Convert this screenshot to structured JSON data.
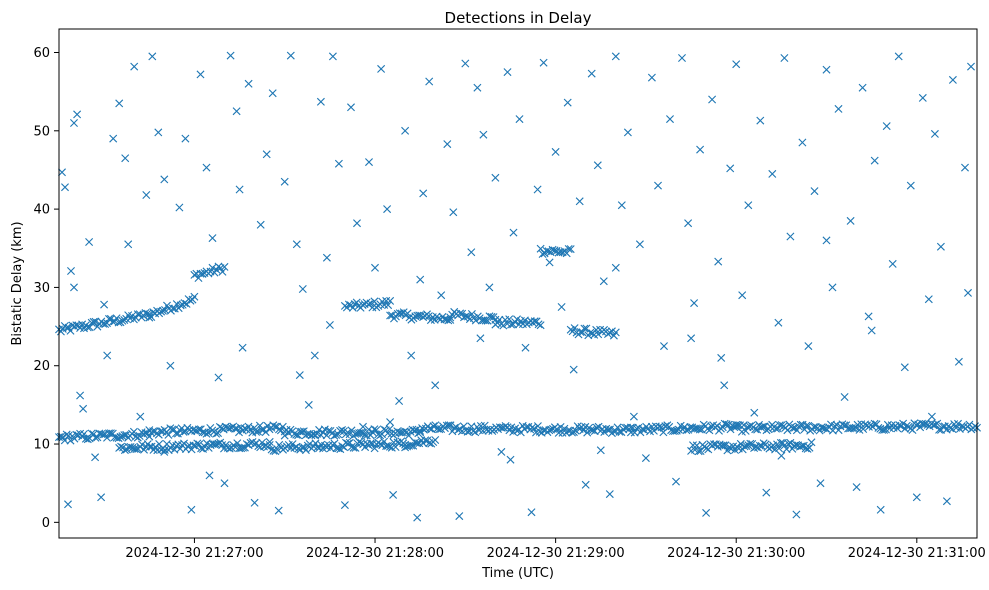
{
  "chart_data": {
    "type": "scatter",
    "title": "Detections in Delay",
    "xlabel": "Time (UTC)",
    "ylabel": "Bistatic Delay (km)",
    "marker": "x",
    "color": "#1f77b4",
    "grid": false,
    "x_range": [
      "2024-12-30 21:26:15",
      "2024-12-30 21:31:20"
    ],
    "ylim": [
      -2,
      63
    ],
    "x_ticks": [
      "2024-12-30 21:27:00",
      "2024-12-30 21:28:00",
      "2024-12-30 21:29:00",
      "2024-12-30 21:30:00",
      "2024-12-30 21:31:00"
    ],
    "y_ticks": [
      0,
      10,
      20,
      30,
      40,
      50,
      60
    ],
    "tracks": [
      {
        "from": "2024-12-30 21:26:15",
        "to": "2024-12-30 21:26:45",
        "y_start": 24.5,
        "y_end": 26.5
      },
      {
        "from": "2024-12-30 21:26:45",
        "to": "2024-12-30 21:27:00",
        "y_start": 26.5,
        "y_end": 28.5
      },
      {
        "from": "2024-12-30 21:27:00",
        "to": "2024-12-30 21:27:10",
        "y_start": 31.5,
        "y_end": 32.5
      },
      {
        "from": "2024-12-30 21:27:50",
        "to": "2024-12-30 21:28:05",
        "y_start": 27.5,
        "y_end": 28.0
      },
      {
        "from": "2024-12-30 21:28:05",
        "to": "2024-12-30 21:28:25",
        "y_start": 26.5,
        "y_end": 26.0
      },
      {
        "from": "2024-12-30 21:28:25",
        "to": "2024-12-30 21:28:40",
        "y_start": 26.5,
        "y_end": 26.0
      },
      {
        "from": "2024-12-30 21:28:40",
        "to": "2024-12-30 21:28:55",
        "y_start": 25.5,
        "y_end": 25.5
      },
      {
        "from": "2024-12-30 21:28:55",
        "to": "2024-12-30 21:29:05",
        "y_start": 34.7,
        "y_end": 34.5
      },
      {
        "from": "2024-12-30 21:29:05",
        "to": "2024-12-30 21:29:20",
        "y_start": 24.5,
        "y_end": 24.0
      },
      {
        "from": "2024-12-30 21:26:15",
        "to": "2024-12-30 21:26:45",
        "y_start": 10.8,
        "y_end": 11.3
      },
      {
        "from": "2024-12-30 21:26:45",
        "to": "2024-12-30 21:27:30",
        "y_start": 11.5,
        "y_end": 12.0
      },
      {
        "from": "2024-12-30 21:27:30",
        "to": "2024-12-30 21:28:15",
        "y_start": 11.5,
        "y_end": 11.5
      },
      {
        "from": "2024-12-30 21:28:15",
        "to": "2024-12-30 21:29:25",
        "y_start": 12.0,
        "y_end": 11.8
      },
      {
        "from": "2024-12-30 21:29:25",
        "to": "2024-12-30 21:30:00",
        "y_start": 11.8,
        "y_end": 12.2
      },
      {
        "from": "2024-12-30 21:30:00",
        "to": "2024-12-30 21:31:20",
        "y_start": 12.0,
        "y_end": 12.3
      },
      {
        "from": "2024-12-30 21:26:35",
        "to": "2024-12-30 21:27:25",
        "y_start": 9.5,
        "y_end": 10.0
      },
      {
        "from": "2024-12-30 21:27:25",
        "to": "2024-12-30 21:28:10",
        "y_start": 9.5,
        "y_end": 10.0
      },
      {
        "from": "2024-12-30 21:28:10",
        "to": "2024-12-30 21:28:20",
        "y_start": 10.0,
        "y_end": 10.5
      },
      {
        "from": "2024-12-30 21:29:45",
        "to": "2024-12-30 21:30:25",
        "y_start": 9.5,
        "y_end": 9.8
      }
    ],
    "scatter_points": [
      [
        "21:26:16",
        44.7
      ],
      [
        "21:26:17",
        42.8
      ],
      [
        "21:26:18",
        2.3
      ],
      [
        "21:26:19",
        32.1
      ],
      [
        "21:26:20",
        51.0
      ],
      [
        "21:26:21",
        52.1
      ],
      [
        "21:26:22",
        16.2
      ],
      [
        "21:26:23",
        14.5
      ],
      [
        "21:26:25",
        35.8
      ],
      [
        "21:26:27",
        8.3
      ],
      [
        "21:26:29",
        3.2
      ],
      [
        "21:26:31",
        21.3
      ],
      [
        "21:26:33",
        49.0
      ],
      [
        "21:26:35",
        53.5
      ],
      [
        "21:26:37",
        46.5
      ],
      [
        "21:26:40",
        58.2
      ],
      [
        "21:26:42",
        13.5
      ],
      [
        "21:26:44",
        41.8
      ],
      [
        "21:26:46",
        59.5
      ],
      [
        "21:26:48",
        49.8
      ],
      [
        "21:26:50",
        43.8
      ],
      [
        "21:26:52",
        20.0
      ],
      [
        "21:26:55",
        40.2
      ],
      [
        "21:26:57",
        49.0
      ],
      [
        "21:26:59",
        1.6
      ],
      [
        "21:27:02",
        57.2
      ],
      [
        "21:27:04",
        45.3
      ],
      [
        "21:27:06",
        36.3
      ],
      [
        "21:27:08",
        18.5
      ],
      [
        "21:27:10",
        5.0
      ],
      [
        "21:27:12",
        59.6
      ],
      [
        "21:27:14",
        52.5
      ],
      [
        "21:27:16",
        22.3
      ],
      [
        "21:27:18",
        56.0
      ],
      [
        "21:27:20",
        2.5
      ],
      [
        "21:27:22",
        38.0
      ],
      [
        "21:27:24",
        47.0
      ],
      [
        "21:27:26",
        54.8
      ],
      [
        "21:27:28",
        1.5
      ],
      [
        "21:27:30",
        43.5
      ],
      [
        "21:27:32",
        59.6
      ],
      [
        "21:27:34",
        35.5
      ],
      [
        "21:27:36",
        29.8
      ],
      [
        "21:27:38",
        15.0
      ],
      [
        "21:27:40",
        21.3
      ],
      [
        "21:27:42",
        53.7
      ],
      [
        "21:27:44",
        33.8
      ],
      [
        "21:27:46",
        59.5
      ],
      [
        "21:27:48",
        45.8
      ],
      [
        "21:27:50",
        2.2
      ],
      [
        "21:27:52",
        53.0
      ],
      [
        "21:27:54",
        38.2
      ],
      [
        "21:27:56",
        12.2
      ],
      [
        "21:27:58",
        46.0
      ],
      [
        "21:28:00",
        32.5
      ],
      [
        "21:28:02",
        57.9
      ],
      [
        "21:28:04",
        40.0
      ],
      [
        "21:28:06",
        3.5
      ],
      [
        "21:28:08",
        15.5
      ],
      [
        "21:28:10",
        50.0
      ],
      [
        "21:28:12",
        21.3
      ],
      [
        "21:28:14",
        0.6
      ],
      [
        "21:28:16",
        42.0
      ],
      [
        "21:28:18",
        56.3
      ],
      [
        "21:28:20",
        17.5
      ],
      [
        "21:28:22",
        29.0
      ],
      [
        "21:28:24",
        48.3
      ],
      [
        "21:28:26",
        39.6
      ],
      [
        "21:28:28",
        0.8
      ],
      [
        "21:28:30",
        58.6
      ],
      [
        "21:28:32",
        34.5
      ],
      [
        "21:28:34",
        55.5
      ],
      [
        "21:28:36",
        49.5
      ],
      [
        "21:28:38",
        30.0
      ],
      [
        "21:28:40",
        44.0
      ],
      [
        "21:28:42",
        9.0
      ],
      [
        "21:28:44",
        57.5
      ],
      [
        "21:28:46",
        37.0
      ],
      [
        "21:28:48",
        51.5
      ],
      [
        "21:28:50",
        22.3
      ],
      [
        "21:28:52",
        1.3
      ],
      [
        "21:28:54",
        42.5
      ],
      [
        "21:28:56",
        58.7
      ],
      [
        "21:28:58",
        33.2
      ],
      [
        "21:29:00",
        47.3
      ],
      [
        "21:29:02",
        27.5
      ],
      [
        "21:29:04",
        53.6
      ],
      [
        "21:29:06",
        19.5
      ],
      [
        "21:29:08",
        41.0
      ],
      [
        "21:29:10",
        4.8
      ],
      [
        "21:29:12",
        57.3
      ],
      [
        "21:29:14",
        45.6
      ],
      [
        "21:29:16",
        30.8
      ],
      [
        "21:29:18",
        3.6
      ],
      [
        "21:29:20",
        59.5
      ],
      [
        "21:29:22",
        40.5
      ],
      [
        "21:29:24",
        49.8
      ],
      [
        "21:29:26",
        13.5
      ],
      [
        "21:29:28",
        35.5
      ],
      [
        "21:29:30",
        8.2
      ],
      [
        "21:29:32",
        56.8
      ],
      [
        "21:29:34",
        43.0
      ],
      [
        "21:29:36",
        22.5
      ],
      [
        "21:29:38",
        51.5
      ],
      [
        "21:29:40",
        5.2
      ],
      [
        "21:29:42",
        59.3
      ],
      [
        "21:29:44",
        38.2
      ],
      [
        "21:29:46",
        28.0
      ],
      [
        "21:29:48",
        47.6
      ],
      [
        "21:29:50",
        1.2
      ],
      [
        "21:29:52",
        54.0
      ],
      [
        "21:29:54",
        33.3
      ],
      [
        "21:29:56",
        17.5
      ],
      [
        "21:29:58",
        45.2
      ],
      [
        "21:30:00",
        58.5
      ],
      [
        "21:30:02",
        29.0
      ],
      [
        "21:30:04",
        40.5
      ],
      [
        "21:30:06",
        14.0
      ],
      [
        "21:30:08",
        51.3
      ],
      [
        "21:30:10",
        3.8
      ],
      [
        "21:30:12",
        44.5
      ],
      [
        "21:30:14",
        25.5
      ],
      [
        "21:30:16",
        59.3
      ],
      [
        "21:30:18",
        36.5
      ],
      [
        "21:30:20",
        1.0
      ],
      [
        "21:30:22",
        48.5
      ],
      [
        "21:30:24",
        22.5
      ],
      [
        "21:30:26",
        42.3
      ],
      [
        "21:30:28",
        5.0
      ],
      [
        "21:30:30",
        57.8
      ],
      [
        "21:30:32",
        30.0
      ],
      [
        "21:30:34",
        52.8
      ],
      [
        "21:30:36",
        16.0
      ],
      [
        "21:30:38",
        38.5
      ],
      [
        "21:30:40",
        4.5
      ],
      [
        "21:30:42",
        55.5
      ],
      [
        "21:30:44",
        26.3
      ],
      [
        "21:30:46",
        46.2
      ],
      [
        "21:30:48",
        1.6
      ],
      [
        "21:30:50",
        50.6
      ],
      [
        "21:30:52",
        33.0
      ],
      [
        "21:30:54",
        59.5
      ],
      [
        "21:30:56",
        19.8
      ],
      [
        "21:30:58",
        43.0
      ],
      [
        "21:31:00",
        3.2
      ],
      [
        "21:31:02",
        54.2
      ],
      [
        "21:31:04",
        28.5
      ],
      [
        "21:31:06",
        49.6
      ],
      [
        "21:31:08",
        35.2
      ],
      [
        "21:31:10",
        2.7
      ],
      [
        "21:31:12",
        56.5
      ],
      [
        "21:31:14",
        20.5
      ],
      [
        "21:31:16",
        45.3
      ],
      [
        "21:31:17",
        29.3
      ],
      [
        "21:31:18",
        58.2
      ],
      [
        "21:26:30",
        27.8
      ],
      [
        "21:26:50",
        9.0
      ],
      [
        "21:27:05",
        6.0
      ],
      [
        "21:27:35",
        18.8
      ],
      [
        "21:28:05",
        12.8
      ],
      [
        "21:28:35",
        23.5
      ],
      [
        "21:29:15",
        9.2
      ],
      [
        "21:29:45",
        23.5
      ],
      [
        "21:30:15",
        8.5
      ],
      [
        "21:30:45",
        24.5
      ],
      [
        "21:26:38",
        35.5
      ],
      [
        "21:27:15",
        42.5
      ],
      [
        "21:27:45",
        25.2
      ],
      [
        "21:28:15",
        31.0
      ],
      [
        "21:28:45",
        8.0
      ],
      [
        "21:29:20",
        32.5
      ],
      [
        "21:29:55",
        21.0
      ],
      [
        "21:30:30",
        36.0
      ],
      [
        "21:31:05",
        13.5
      ],
      [
        "21:26:20",
        30.0
      ]
    ]
  }
}
